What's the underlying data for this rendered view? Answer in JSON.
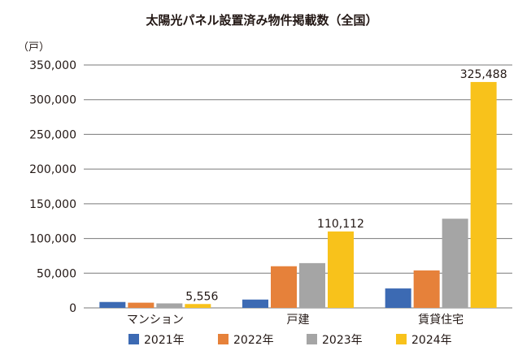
{
  "chart_data": {
    "type": "bar",
    "title": "太陽光パネル設置済み物件掲載数（全国）",
    "ylabel": "（戸）",
    "xlabel": "",
    "ylim": [
      0,
      350000
    ],
    "yticks": [
      0,
      50000,
      100000,
      150000,
      200000,
      250000,
      300000,
      350000
    ],
    "ytick_labels": [
      "0",
      "50,000",
      "100,000",
      "150,000",
      "200,000",
      "250,000",
      "300,000",
      "350,000"
    ],
    "categories": [
      "マンション",
      "戸建",
      "賃貸住宅"
    ],
    "series": [
      {
        "name": "2021年",
        "color": "#3c6ab3",
        "values": [
          8500,
          12000,
          28000
        ]
      },
      {
        "name": "2022年",
        "color": "#e6813a",
        "values": [
          7500,
          60000,
          54000
        ]
      },
      {
        "name": "2023年",
        "color": "#a5a5a5",
        "values": [
          6500,
          64500,
          128500
        ]
      },
      {
        "name": "2024年",
        "color": "#f8c21b",
        "values": [
          5556,
          110112,
          325488
        ]
      }
    ],
    "data_labels": [
      {
        "series": 3,
        "category": 0,
        "text": "5,556"
      },
      {
        "series": 3,
        "category": 1,
        "text": "110,112"
      },
      {
        "series": 3,
        "category": 2,
        "text": "325,488"
      }
    ],
    "grid": true,
    "legend": "bottom"
  }
}
